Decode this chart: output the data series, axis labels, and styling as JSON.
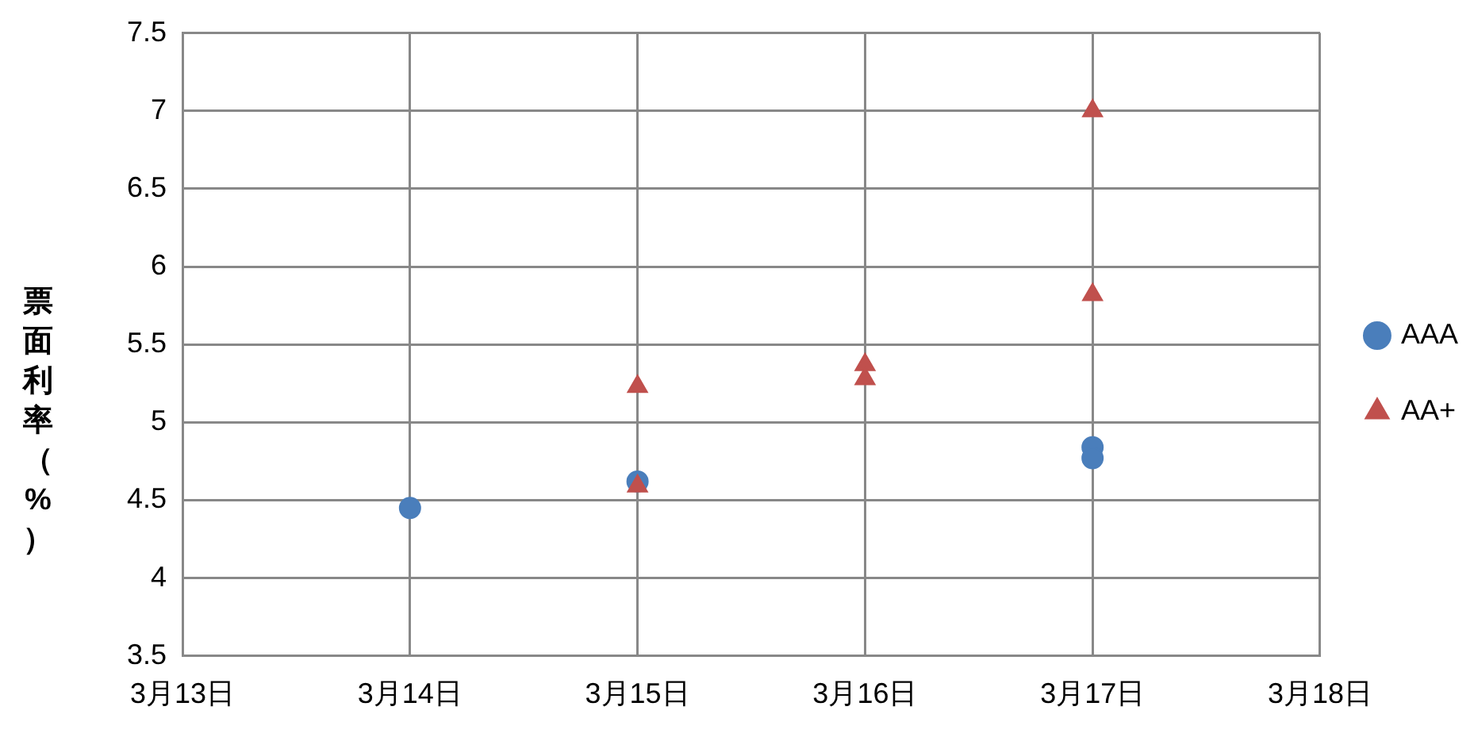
{
  "chart_data": {
    "type": "scatter",
    "ylabel": "票面利率（%）",
    "xlim": [
      "--03-13",
      "--03-18"
    ],
    "xticks": [
      {
        "value": "--03-13",
        "label": "3月13日"
      },
      {
        "value": "--03-14",
        "label": "3月14日"
      },
      {
        "value": "--03-15",
        "label": "3月15日"
      },
      {
        "value": "--03-16",
        "label": "3月16日"
      },
      {
        "value": "--03-17",
        "label": "3月17日"
      },
      {
        "value": "--03-18",
        "label": "3月18日"
      }
    ],
    "ylim": [
      3.5,
      7.5
    ],
    "yticks": [
      3.5,
      4,
      4.5,
      5,
      5.5,
      6,
      6.5,
      7,
      7.5
    ],
    "grid": true,
    "legend": "right",
    "series": [
      {
        "name": "AAA",
        "color": "#4a7ebb",
        "marker": "circle",
        "x": [
          "--03-14",
          "--03-15",
          "--03-17",
          "--03-17"
        ],
        "values": [
          4.45,
          4.62,
          4.84,
          4.77
        ]
      },
      {
        "name": "AA+",
        "color": "#c0504d",
        "marker": "triangle",
        "x": [
          "--03-15",
          "--03-15",
          "--03-16",
          "--03-16",
          "--03-17",
          "--03-17"
        ],
        "values": [
          5.23,
          4.59,
          5.37,
          5.28,
          7.0,
          5.82
        ]
      }
    ]
  }
}
